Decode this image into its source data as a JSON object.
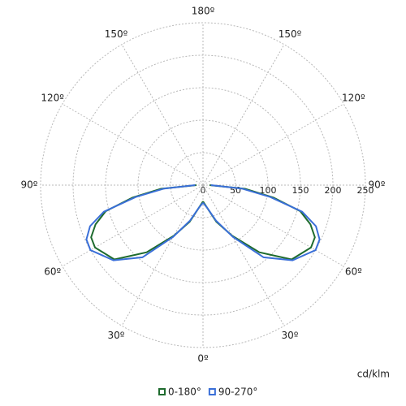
{
  "chart_data": {
    "type": "polar",
    "unit_label": "cd/klm",
    "x": [
      0,
      10,
      20,
      30,
      40,
      50,
      60,
      65,
      70,
      75,
      80,
      85,
      90
    ],
    "series": [
      {
        "name": "0-180°",
        "color": "#1e6b2e",
        "values": [
          25,
          35,
          60,
          90,
          135,
          178,
          192,
          190,
          176,
          155,
          110,
          65,
          10
        ]
      },
      {
        "name": "90-270°",
        "color": "#3a6fd8",
        "values": [
          27,
          35,
          58,
          92,
          145,
          180,
          200,
          198,
          185,
          158,
          105,
          60,
          12
        ]
      }
    ],
    "rlim": [
      0,
      250
    ],
    "rticks": [
      0,
      50,
      100,
      150,
      200,
      250
    ],
    "angle_ticks": [
      {
        "value": 0,
        "label": "0º"
      },
      {
        "value": 30,
        "label": "30º"
      },
      {
        "value": 60,
        "label": "60º"
      },
      {
        "value": 90,
        "label": "90º"
      },
      {
        "value": 120,
        "label": "120º"
      },
      {
        "value": 150,
        "label": "150º"
      },
      {
        "value": 180,
        "label": "180º"
      }
    ],
    "grid": true
  }
}
